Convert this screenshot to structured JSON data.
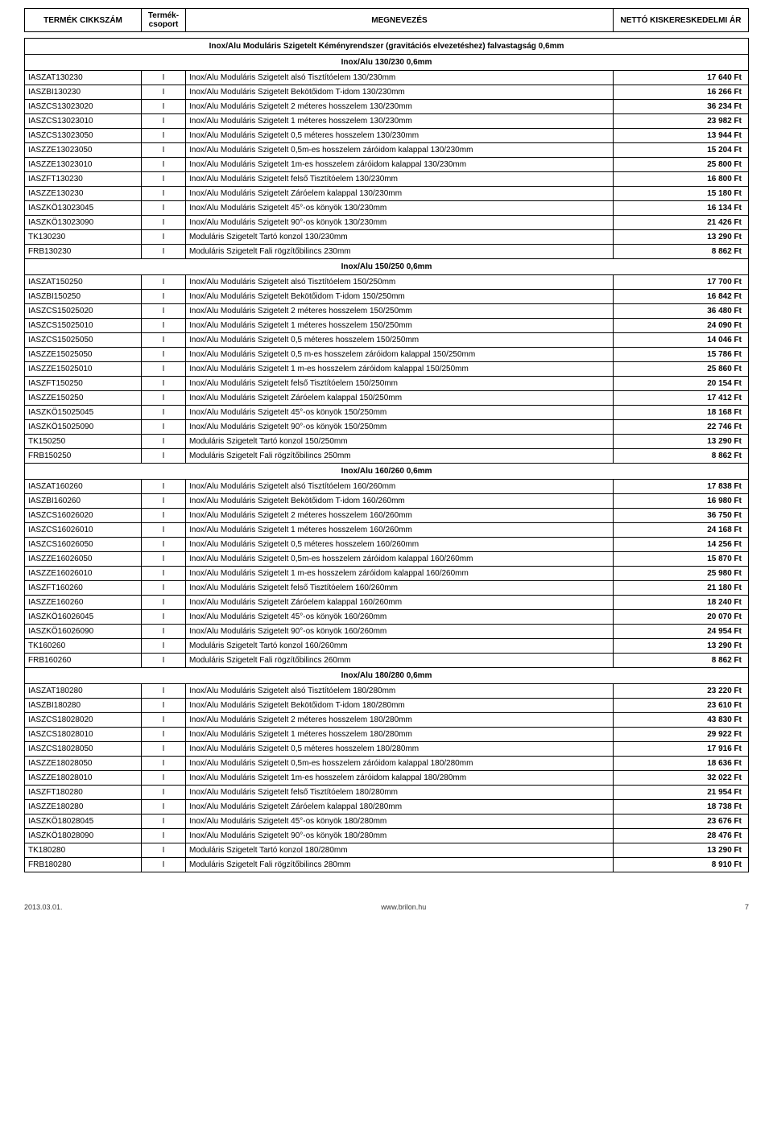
{
  "header": {
    "col1": "TERMÉK CIKKSZÁM",
    "col2": "Termék-csoport",
    "col3": "MEGNEVEZÉS",
    "col4": "NETTÓ KISKERESKEDELMI ÁR"
  },
  "main_title": "Inox/Alu Moduláris Szigetelt Kéményrendszer (gravitációs elvezetéshez) falvastagság 0,6mm",
  "sections": [
    {
      "title": "Inox/Alu 130/230 0,6mm",
      "rows": [
        {
          "code": "IASZAT130230",
          "g": "I",
          "name": "Inox/Alu Moduláris Szigetelt alsó Tisztítóelem 130/230mm",
          "price": "17 640 Ft"
        },
        {
          "code": "IASZBI130230",
          "g": "I",
          "name": "Inox/Alu Moduláris Szigetelt Bekötőidom T-idom 130/230mm",
          "price": "16 266 Ft"
        },
        {
          "code": "IASZCS13023020",
          "g": "I",
          "name": "Inox/Alu Moduláris Szigetelt 2 méteres hosszelem 130/230mm",
          "price": "36 234 Ft"
        },
        {
          "code": "IASZCS13023010",
          "g": "I",
          "name": "Inox/Alu Moduláris Szigetelt 1 méteres hosszelem 130/230mm",
          "price": "23 982 Ft"
        },
        {
          "code": "IASZCS13023050",
          "g": "I",
          "name": "Inox/Alu Moduláris Szigetelt 0,5 méteres hosszelem 130/230mm",
          "price": "13 944 Ft"
        },
        {
          "code": "IASZZE13023050",
          "g": "I",
          "name": "Inox/Alu Moduláris Szigetelt 0,5m-es hosszelem záróidom kalappal 130/230mm",
          "price": "15 204 Ft"
        },
        {
          "code": "IASZZE13023010",
          "g": "I",
          "name": "Inox/Alu Moduláris Szigetelt 1m-es hosszelem záróidom kalappal 130/230mm",
          "price": "25 800 Ft"
        },
        {
          "code": "IASZFT130230",
          "g": "I",
          "name": "Inox/Alu Moduláris Szigetelt felső Tisztítóelem 130/230mm",
          "price": "16 800 Ft"
        },
        {
          "code": "IASZZE130230",
          "g": "I",
          "name": "Inox/Alu Moduláris Szigetelt Záróelem kalappal 130/230mm",
          "price": "15 180 Ft"
        },
        {
          "code": "IASZKÖ13023045",
          "g": "I",
          "name": "Inox/Alu Moduláris Szigetelt 45°-os könyök 130/230mm",
          "price": "16 134 Ft"
        },
        {
          "code": "IASZKÖ13023090",
          "g": "I",
          "name": "Inox/Alu Moduláris Szigetelt 90°-os könyök 130/230mm",
          "price": "21 426 Ft"
        },
        {
          "code": "TK130230",
          "g": "I",
          "name": "Moduláris Szigetelt Tartó konzol 130/230mm",
          "price": "13 290 Ft"
        },
        {
          "code": "FRB130230",
          "g": "I",
          "name": "Moduláris Szigetelt Fali rögzítőbilincs 230mm",
          "price": "8 862 Ft"
        }
      ]
    },
    {
      "title": "Inox/Alu 150/250 0,6mm",
      "rows": [
        {
          "code": "IASZAT150250",
          "g": "I",
          "name": "Inox/Alu Moduláris Szigetelt alsó Tisztítóelem 150/250mm",
          "price": "17 700 Ft"
        },
        {
          "code": "IASZBI150250",
          "g": "I",
          "name": "Inox/Alu Moduláris Szigetelt Bekötőidom T-idom 150/250mm",
          "price": "16 842 Ft"
        },
        {
          "code": "IASZCS15025020",
          "g": "I",
          "name": "Inox/Alu Moduláris Szigetelt 2 méteres hosszelem 150/250mm",
          "price": "36 480 Ft"
        },
        {
          "code": "IASZCS15025010",
          "g": "I",
          "name": "Inox/Alu Moduláris Szigetelt 1 méteres hosszelem 150/250mm",
          "price": "24 090 Ft"
        },
        {
          "code": "IASZCS15025050",
          "g": "I",
          "name": "Inox/Alu Moduláris Szigetelt 0,5 méteres hosszelem 150/250mm",
          "price": "14 046 Ft"
        },
        {
          "code": "IASZZE15025050",
          "g": "I",
          "name": "Inox/Alu Moduláris Szigetelt 0,5 m-es hosszelem záróidom kalappal 150/250mm",
          "price": "15 786 Ft"
        },
        {
          "code": "IASZZE15025010",
          "g": "I",
          "name": "Inox/Alu Moduláris Szigetelt 1 m-es hosszelem záróidom kalappal 150/250mm",
          "price": "25 860 Ft"
        },
        {
          "code": "IASZFT150250",
          "g": "I",
          "name": "Inox/Alu Moduláris Szigetelt felső Tisztítóelem 150/250mm",
          "price": "20 154 Ft"
        },
        {
          "code": "IASZZE150250",
          "g": "I",
          "name": "Inox/Alu Moduláris Szigetelt Záróelem kalappal 150/250mm",
          "price": "17 412 Ft"
        },
        {
          "code": "IASZKÖ15025045",
          "g": "I",
          "name": "Inox/Alu Moduláris Szigetelt 45°-os könyök 150/250mm",
          "price": "18 168 Ft"
        },
        {
          "code": "IASZKÖ15025090",
          "g": "I",
          "name": "Inox/Alu Moduláris Szigetelt 90°-os könyök 150/250mm",
          "price": "22 746 Ft"
        },
        {
          "code": "TK150250",
          "g": "I",
          "name": "Moduláris Szigetelt Tartó konzol 150/250mm",
          "price": "13 290 Ft"
        },
        {
          "code": "FRB150250",
          "g": "I",
          "name": "Moduláris Szigetelt Fali rögzítőbilincs 250mm",
          "price": "8 862 Ft"
        }
      ]
    },
    {
      "title": "Inox/Alu 160/260 0,6mm",
      "rows": [
        {
          "code": "IASZAT160260",
          "g": "I",
          "name": "Inox/Alu Moduláris Szigetelt alsó Tisztítóelem 160/260mm",
          "price": "17 838 Ft"
        },
        {
          "code": "IASZBI160260",
          "g": "I",
          "name": "Inox/Alu Moduláris Szigetelt Bekötőidom T-idom 160/260mm",
          "price": "16 980 Ft"
        },
        {
          "code": "IASZCS16026020",
          "g": "I",
          "name": "Inox/Alu Moduláris Szigetelt 2 méteres hosszelem 160/260mm",
          "price": "36 750 Ft"
        },
        {
          "code": "IASZCS16026010",
          "g": "I",
          "name": "Inox/Alu Moduláris Szigetelt 1 méteres hosszelem 160/260mm",
          "price": "24 168 Ft"
        },
        {
          "code": "IASZCS16026050",
          "g": "I",
          "name": "Inox/Alu Moduláris Szigetelt 0,5 méteres hosszelem 160/260mm",
          "price": "14 256 Ft"
        },
        {
          "code": "IASZZE16026050",
          "g": "I",
          "name": "Inox/Alu Moduláris Szigetelt 0,5m-es hosszelem záróidom kalappal 160/260mm",
          "price": "15 870 Ft"
        },
        {
          "code": "IASZZE16026010",
          "g": "I",
          "name": "Inox/Alu Moduláris Szigetelt 1 m-es hosszelem záróidom kalappal 160/260mm",
          "price": "25 980 Ft"
        },
        {
          "code": "IASZFT160260",
          "g": "I",
          "name": "Inox/Alu Moduláris Szigetelt felső Tisztítóelem 160/260mm",
          "price": "21 180 Ft"
        },
        {
          "code": "IASZZE160260",
          "g": "I",
          "name": "Inox/Alu Moduláris Szigetelt Záróelem kalappal 160/260mm",
          "price": "18 240 Ft"
        },
        {
          "code": "IASZKÖ16026045",
          "g": "I",
          "name": "Inox/Alu Moduláris Szigetelt 45°-os könyök 160/260mm",
          "price": "20 070 Ft"
        },
        {
          "code": "IASZKÖ16026090",
          "g": "I",
          "name": "Inox/Alu Moduláris Szigetelt 90°-os könyök 160/260mm",
          "price": "24 954 Ft"
        },
        {
          "code": "TK160260",
          "g": "I",
          "name": "Moduláris Szigetelt Tartó konzol 160/260mm",
          "price": "13 290 Ft"
        },
        {
          "code": "FRB160260",
          "g": "I",
          "name": "Moduláris Szigetelt Fali rögzítőbilincs 260mm",
          "price": "8 862 Ft"
        }
      ]
    },
    {
      "title": "Inox/Alu 180/280 0,6mm",
      "rows": [
        {
          "code": "IASZAT180280",
          "g": "I",
          "name": "Inox/Alu Moduláris Szigetelt alsó Tisztítóelem 180/280mm",
          "price": "23 220 Ft"
        },
        {
          "code": "IASZBI180280",
          "g": "I",
          "name": "Inox/Alu Moduláris Szigetelt Bekötőidom T-idom 180/280mm",
          "price": "23 610 Ft"
        },
        {
          "code": "IASZCS18028020",
          "g": "I",
          "name": "Inox/Alu Moduláris Szigetelt 2 méteres hosszelem 180/280mm",
          "price": "43 830 Ft"
        },
        {
          "code": "IASZCS18028010",
          "g": "I",
          "name": "Inox/Alu Moduláris Szigetelt 1 méteres hosszelem 180/280mm",
          "price": "29 922 Ft"
        },
        {
          "code": "IASZCS18028050",
          "g": "I",
          "name": "Inox/Alu Moduláris Szigetelt 0,5 méteres hosszelem 180/280mm",
          "price": "17 916 Ft"
        },
        {
          "code": "IASZZE18028050",
          "g": "I",
          "name": "Inox/Alu Moduláris Szigetelt 0,5m-es hosszelem záróidom kalappal 180/280mm",
          "price": "18 636 Ft"
        },
        {
          "code": "IASZZE18028010",
          "g": "I",
          "name": "Inox/Alu Moduláris Szigetelt 1m-es hosszelem záróidom kalappal 180/280mm",
          "price": "32 022 Ft"
        },
        {
          "code": "IASZFT180280",
          "g": "I",
          "name": "Inox/Alu Moduláris Szigetelt felső Tisztítóelem 180/280mm",
          "price": "21 954 Ft"
        },
        {
          "code": "IASZZE180280",
          "g": "I",
          "name": "Inox/Alu Moduláris Szigetelt Záróelem kalappal 180/280mm",
          "price": "18 738 Ft"
        },
        {
          "code": "IASZKÖ18028045",
          "g": "I",
          "name": "Inox/Alu Moduláris Szigetelt 45°-os könyök 180/280mm",
          "price": "23 676 Ft"
        },
        {
          "code": "IASZKÖ18028090",
          "g": "I",
          "name": "Inox/Alu Moduláris Szigetelt 90°-os könyök 180/280mm",
          "price": "28 476 Ft"
        },
        {
          "code": "TK180280",
          "g": "I",
          "name": "Moduláris Szigetelt Tartó konzol 180/280mm",
          "price": "13 290 Ft"
        },
        {
          "code": "FRB180280",
          "g": "I",
          "name": "Moduláris Szigetelt Fali rögzítőbilincs 280mm",
          "price": "8 910 Ft"
        }
      ]
    }
  ],
  "footer": {
    "date": "2013.03.01.",
    "site": "www.brilon.hu",
    "page": "7"
  }
}
